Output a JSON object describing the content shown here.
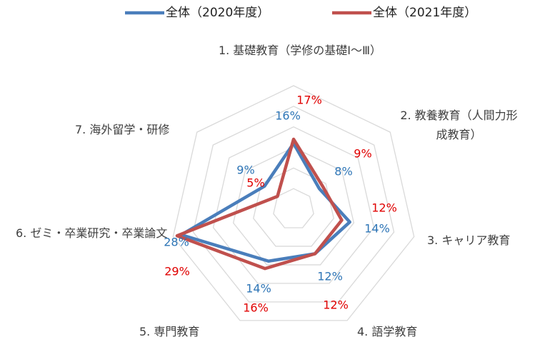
{
  "chart_data": {
    "type": "radar",
    "categories": [
      "1. 基礎教育（学修の基礎Ⅰ～Ⅲ）",
      "2. 教養教育（人間力形成教育）",
      "3. キャリア教育",
      "4. 語学教育",
      "5. 専門教育",
      "6. ゼミ・卒業研究・卒業論文",
      "7. 海外留学・研修"
    ],
    "series": [
      {
        "name": "全体（2020年度）",
        "color": "#4a7ebb",
        "label_color": "#2e75b6",
        "values": [
          16,
          8,
          14,
          12,
          14,
          28,
          9
        ],
        "value_labels": [
          "16%",
          "8%",
          "14%",
          "12%",
          "14%",
          "28%",
          "9%"
        ]
      },
      {
        "name": "全体（2021年度）",
        "color": "#c0504d",
        "label_color": "#e00000",
        "values": [
          17,
          9,
          12,
          12,
          16,
          29,
          5
        ],
        "value_labels": [
          "17%",
          "9%",
          "12%",
          "12%",
          "16%",
          "29%",
          "5%"
        ]
      }
    ],
    "ylim": [
      0,
      30
    ],
    "yticks": [
      0,
      5,
      10,
      15,
      20,
      25,
      30
    ],
    "grid": true,
    "legend": "top"
  }
}
